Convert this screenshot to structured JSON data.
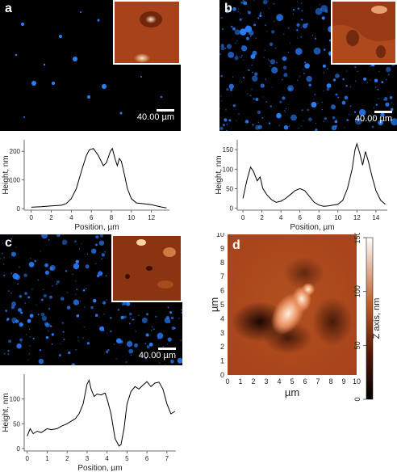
{
  "panels": {
    "a": {
      "label": "a",
      "scale_bar": "40.00 µm"
    },
    "b": {
      "label": "b",
      "scale_bar": "40.00 µm"
    },
    "c": {
      "label": "c",
      "scale_bar": "40.00 µm"
    },
    "d": {
      "label": "d"
    }
  },
  "colors": {
    "micro_bg": "#000000",
    "particles": "#2a7fff",
    "afm_dark": "#2a0c02",
    "afm_mid": "#a8421a",
    "afm_light": "#ffe6c8",
    "curve": "#000000"
  },
  "chart_data": [
    {
      "type": "line",
      "id": "a",
      "xlabel": "Position, µm",
      "ylabel": "Height, nm",
      "xlim": [
        -0.7,
        13.8
      ],
      "ylim": [
        -5,
        240
      ],
      "xticks": [
        "0",
        "2",
        "4",
        "6",
        "8",
        "10",
        "12"
      ],
      "yticks": [
        "0",
        "100",
        "200"
      ],
      "series": [
        {
          "x": [
            0,
            1,
            2,
            3,
            3.5,
            4,
            4.5,
            5,
            5.5,
            5.8,
            6.2,
            6.7,
            7.2,
            7.5,
            7.9,
            8.1,
            8.4,
            8.6,
            8.8,
            9,
            9.3,
            9.6,
            10,
            10.5,
            11,
            11.5,
            12,
            12.5,
            13,
            13.5
          ],
          "y": [
            5,
            7,
            10,
            12,
            18,
            35,
            70,
            130,
            185,
            205,
            210,
            185,
            150,
            160,
            200,
            210,
            170,
            150,
            175,
            165,
            120,
            70,
            35,
            20,
            18,
            16,
            14,
            10,
            6,
            3
          ]
        }
      ]
    },
    {
      "type": "line",
      "id": "b",
      "xlabel": "Position, µm",
      "ylabel": "Height, nm",
      "xlim": [
        -0.6,
        15.2
      ],
      "ylim": [
        -5,
        175
      ],
      "xticks": [
        "0",
        "2",
        "4",
        "6",
        "8",
        "10",
        "12",
        "14"
      ],
      "yticks": [
        "0",
        "50",
        "100",
        "150"
      ],
      "series": [
        {
          "x": [
            0,
            0.4,
            0.8,
            1.1,
            1.5,
            1.8,
            2.1,
            2.5,
            3,
            3.5,
            4,
            4.5,
            5,
            5.5,
            6,
            6.5,
            7,
            7.5,
            8,
            8.5,
            9,
            9.5,
            10,
            10.5,
            11,
            11.5,
            11.8,
            12,
            12.3,
            12.6,
            12.9,
            13.2,
            13.6,
            14,
            14.5,
            15
          ],
          "y": [
            25,
            70,
            105,
            95,
            70,
            80,
            50,
            35,
            22,
            15,
            18,
            25,
            35,
            45,
            50,
            45,
            30,
            15,
            8,
            5,
            6,
            8,
            10,
            20,
            50,
            100,
            150,
            165,
            140,
            110,
            145,
            120,
            80,
            45,
            20,
            10
          ]
        }
      ]
    },
    {
      "type": "line",
      "id": "c",
      "xlabel": "Position, µm",
      "ylabel": "Height, nm",
      "xlim": [
        -0.15,
        7.45
      ],
      "ylim": [
        -5,
        150
      ],
      "xticks": [
        "0",
        "1",
        "2",
        "3",
        "4",
        "5",
        "6",
        "7"
      ],
      "yticks": [
        "0",
        "50",
        "100"
      ],
      "series": [
        {
          "x": [
            0,
            0.15,
            0.3,
            0.5,
            0.7,
            1,
            1.2,
            1.5,
            1.7,
            2,
            2.2,
            2.4,
            2.6,
            2.8,
            3,
            3.1,
            3.2,
            3.35,
            3.5,
            3.7,
            3.9,
            4,
            4.2,
            4.4,
            4.6,
            4.7,
            4.85,
            5,
            5.2,
            5.4,
            5.6,
            5.8,
            6,
            6.2,
            6.4,
            6.6,
            6.8,
            7,
            7.2,
            7.4
          ],
          "y": [
            25,
            40,
            30,
            35,
            32,
            40,
            38,
            40,
            45,
            50,
            55,
            60,
            70,
            90,
            130,
            138,
            120,
            105,
            110,
            108,
            112,
            100,
            70,
            20,
            5,
            8,
            40,
            90,
            115,
            125,
            120,
            128,
            135,
            125,
            132,
            134,
            120,
            90,
            70,
            75
          ]
        }
      ]
    },
    {
      "type": "heatmap",
      "id": "d",
      "xlabel": "µm",
      "ylabel": "µm",
      "xlim": [
        0,
        10
      ],
      "ylim": [
        0,
        10
      ],
      "xticks": [
        "0",
        "1",
        "2",
        "3",
        "4",
        "5",
        "6",
        "7",
        "8",
        "9",
        "10"
      ],
      "yticks": [
        "0",
        "1",
        "2",
        "3",
        "4",
        "5",
        "6",
        "7",
        "8",
        "9",
        "10"
      ],
      "colorbar": {
        "label": "Z axis, nm",
        "ticks": [
          "0",
          "50",
          "100",
          "150"
        ],
        "range": [
          0,
          150
        ]
      }
    }
  ]
}
